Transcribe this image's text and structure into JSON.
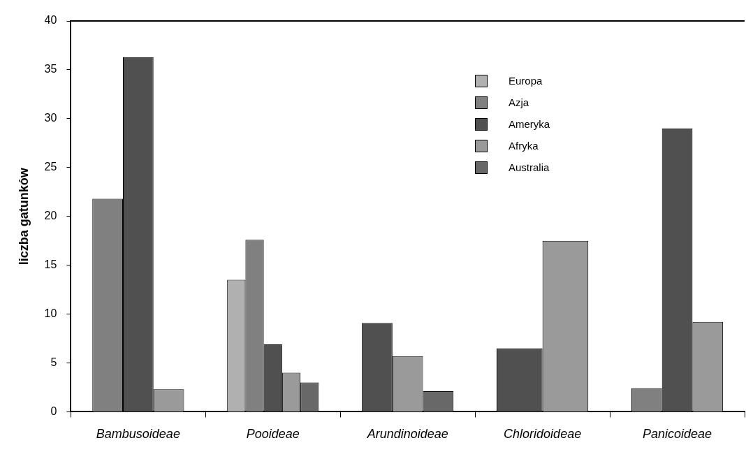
{
  "chart_data": {
    "type": "bar",
    "ylabel": "liczba gatunków",
    "categories": [
      "Bambusoideae",
      "Pooideae",
      "Arundinoideae",
      "Chloridoideae",
      "Panicoideae"
    ],
    "series": [
      {
        "name": "Europa",
        "color": "#b0b0b0",
        "values": [
          null,
          13.5,
          null,
          null,
          null
        ]
      },
      {
        "name": "Azja",
        "color": "#808080",
        "values": [
          21.8,
          17.6,
          null,
          null,
          2.4
        ]
      },
      {
        "name": "Ameryka",
        "color": "#505050",
        "values": [
          36.3,
          6.9,
          9.1,
          6.5,
          29.0
        ]
      },
      {
        "name": "Afryka",
        "color": "#9a9a9a",
        "values": [
          2.3,
          4.0,
          5.7,
          17.5,
          9.2
        ]
      },
      {
        "name": "Australia",
        "color": "#686868",
        "values": [
          null,
          3.0,
          2.1,
          null,
          null
        ]
      }
    ],
    "ylim": [
      0,
      40
    ],
    "yticks": [
      0,
      5,
      10,
      15,
      20,
      25,
      30,
      35,
      40
    ],
    "grid": false,
    "legend": "top right"
  }
}
